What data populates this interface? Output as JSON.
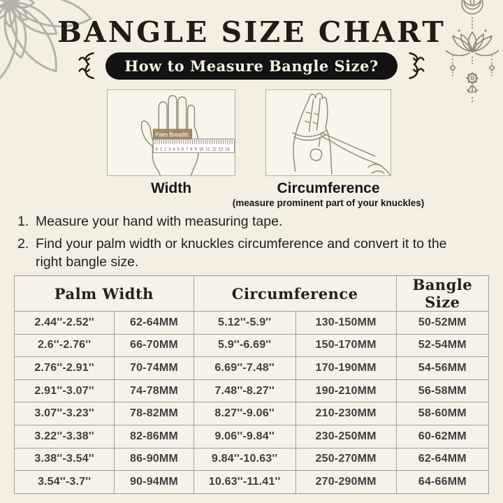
{
  "header": {
    "title": "BANGLE SIZE CHART",
    "badge": "How to Measure Bangle Size?"
  },
  "measure": {
    "width": {
      "caption": "Width",
      "tape_label": "Palm Breadth",
      "ruler_numbers": "0 1 2 3 4 5 6 7 8 9 10 11 12 13 14"
    },
    "circumference": {
      "caption": "Circumference",
      "note": "(measure prominent part of your knuckles)"
    }
  },
  "instructions": [
    {
      "number": "1.",
      "text": "Measure your hand with measuring tape."
    },
    {
      "number": "2.",
      "text": "Find your palm width or knuckles circumference and convert it to the right bangle size."
    }
  ],
  "table": {
    "headers": [
      "Palm Width",
      "Circumference",
      "Bangle Size"
    ],
    "rows": [
      [
        "2.44''-2.52''",
        "62-64MM",
        "5.12''-5.9''",
        "130-150MM",
        "50-52MM"
      ],
      [
        "2.6''-2.76''",
        "66-70MM",
        "5.9''-6.69''",
        "150-170MM",
        "52-54MM"
      ],
      [
        "2.76''-2.91''",
        "70-74MM",
        "6.69''-7.48''",
        "170-190MM",
        "54-56MM"
      ],
      [
        "2.91''-3.07''",
        "74-78MM",
        "7.48''-8.27''",
        "190-210MM",
        "56-58MM"
      ],
      [
        "3.07''-3.23''",
        "78-82MM",
        "8.27''-9.06''",
        "210-230MM",
        "58-60MM"
      ],
      [
        "3.22''-3.38''",
        "82-86MM",
        "9.06''-9.84''",
        "230-250MM",
        "60-62MM"
      ],
      [
        "3.38''-3.54''",
        "86-90MM",
        "9.84''-10.63''",
        "250-270MM",
        "62-64MM"
      ],
      [
        "3.54''-3.7''",
        "90-94MM",
        "10.63''-11.41''",
        "270-290MM",
        "64-66MM"
      ]
    ]
  },
  "colors": {
    "background": "#f5efe3",
    "ink": "#211b14",
    "badge-bg": "#131313",
    "badge-text": "#f6f1e5",
    "table-border": "#a49d8d",
    "table-text": "#3e3e3e",
    "line-art": "#938b7c",
    "ornament": "#8d8779",
    "mandala": "#b7b2a7",
    "tape-tag": "#a28a67"
  }
}
